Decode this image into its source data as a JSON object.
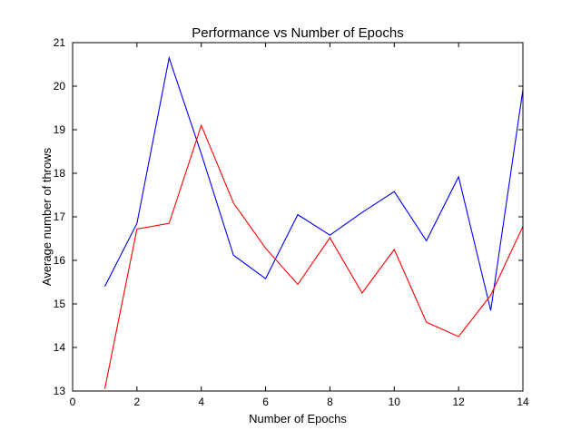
{
  "chart_data": {
    "type": "line",
    "title": "Performance vs Number of Epochs",
    "xlabel": "Number of Epochs",
    "ylabel": "Average number of throws",
    "xlim": [
      0,
      14
    ],
    "ylim": [
      13,
      21
    ],
    "xticks": [
      0,
      2,
      4,
      6,
      8,
      10,
      12,
      14
    ],
    "yticks": [
      13,
      14,
      15,
      16,
      17,
      18,
      19,
      20,
      21
    ],
    "grid": false,
    "legend": "none",
    "x": [
      1,
      2,
      3,
      4,
      5,
      6,
      7,
      8,
      9,
      10,
      11,
      12,
      13,
      14
    ],
    "series": [
      {
        "color": "#0000ff",
        "values": [
          15.4,
          16.85,
          20.65,
          18.45,
          16.12,
          15.58,
          17.05,
          16.58,
          17.1,
          17.58,
          16.45,
          17.92,
          14.85,
          19.92
        ]
      },
      {
        "color": "#ff0000",
        "values": [
          13.05,
          16.72,
          16.85,
          19.1,
          17.32,
          16.28,
          15.45,
          16.52,
          15.25,
          16.25,
          14.58,
          14.25,
          15.2,
          16.78
        ]
      }
    ]
  }
}
